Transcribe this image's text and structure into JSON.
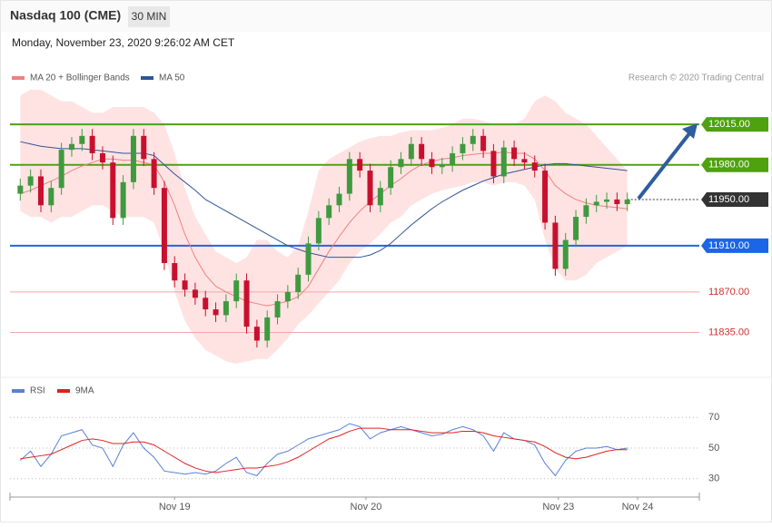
{
  "chart_data": {
    "type": "candlestick",
    "title": "Nasdaq 100 (CME)",
    "timeframe": "30 MIN",
    "subtitle": "Monday, November 23, 2020 9:26:02 AM CET",
    "credit": "Research © 2020 Trading Central",
    "xlim": [
      -1,
      66
    ],
    "xticks": [
      {
        "value": 15,
        "label": "Nov 19"
      },
      {
        "value": 33.6,
        "label": "Nov 20"
      },
      {
        "value": 52.3,
        "label": "Nov 23"
      },
      {
        "value": 60,
        "label": "Nov 24"
      }
    ],
    "ylim": [
      11797,
      12048
    ],
    "up_color": "#3f9a3f",
    "down_color": "#c8102e",
    "open": [
      11955,
      11962,
      11970,
      11945,
      11960,
      11993,
      11998,
      12005,
      11990,
      11982,
      11934,
      11965,
      12005,
      11985,
      11960,
      11895,
      11880,
      11872,
      11865,
      11855,
      11850,
      11862,
      11880,
      11840,
      11828,
      11848,
      11862,
      11870,
      11885,
      11912,
      11934,
      11945,
      11955,
      11985,
      11975,
      11945,
      11960,
      11978,
      11985,
      11998,
      11985,
      11978,
      11980,
      11990,
      11998,
      12005,
      11992,
      11970,
      11995,
      11985,
      11982,
      11975,
      11930,
      11890,
      11915,
      11935,
      11945,
      11948,
      11950,
      11946
    ],
    "high": [
      11968,
      11976,
      11976,
      11966,
      11999,
      12004,
      12011,
      12011,
      11996,
      11988,
      11971,
      12011,
      12011,
      11991,
      11966,
      11901,
      11886,
      11878,
      11871,
      11861,
      11868,
      11886,
      11886,
      11846,
      11854,
      11868,
      11876,
      11891,
      11918,
      11940,
      11951,
      11961,
      11991,
      11991,
      11981,
      11966,
      11984,
      11991,
      12004,
      12004,
      11991,
      11986,
      11996,
      12004,
      12011,
      12011,
      11998,
      12001,
      12001,
      11991,
      11988,
      11981,
      11936,
      11921,
      11941,
      11951,
      11954,
      11956,
      11956,
      11956
    ],
    "low": [
      11949,
      11956,
      11939,
      11939,
      11954,
      11987,
      11992,
      11984,
      11976,
      11928,
      11928,
      11959,
      11979,
      11954,
      11889,
      11874,
      11866,
      11859,
      11849,
      11844,
      11844,
      11856,
      11834,
      11822,
      11822,
      11842,
      11856,
      11864,
      11879,
      11906,
      11928,
      11939,
      11949,
      11969,
      11939,
      11939,
      11954,
      11972,
      11979,
      11979,
      11972,
      11972,
      11974,
      11984,
      11992,
      11986,
      11964,
      11964,
      11979,
      11976,
      11969,
      11924,
      11884,
      11884,
      11909,
      11929,
      11939,
      11942,
      11940,
      11940
    ],
    "close": [
      11962,
      11970,
      11945,
      11960,
      11993,
      11998,
      12005,
      11990,
      11982,
      11934,
      11965,
      12005,
      11985,
      11960,
      11895,
      11880,
      11872,
      11865,
      11855,
      11850,
      11862,
      11880,
      11840,
      11828,
      11848,
      11862,
      11870,
      11885,
      11912,
      11934,
      11945,
      11955,
      11985,
      11975,
      11945,
      11960,
      11978,
      11985,
      11998,
      11985,
      11978,
      11980,
      11990,
      11998,
      12005,
      11992,
      11970,
      11995,
      11985,
      11982,
      11975,
      11930,
      11890,
      11915,
      11935,
      11945,
      11948,
      11950,
      11946,
      11950
    ],
    "bands": {
      "name": "MA 20 + Bollinger Bands",
      "color": "#f08080",
      "fill": "#ffe3e3",
      "ma": [
        11955,
        11958,
        11962,
        11966,
        11970,
        11975,
        11979,
        11982,
        11985,
        11985,
        11984,
        11984,
        11982,
        11980,
        11965,
        11945,
        11920,
        11900,
        11885,
        11875,
        11870,
        11866,
        11862,
        11860,
        11858,
        11860,
        11862,
        11866,
        11875,
        11890,
        11905,
        11918,
        11930,
        11940,
        11948,
        11955,
        11962,
        11968,
        11975,
        11980,
        11983,
        11985,
        11986,
        11988,
        11989,
        11990,
        11990,
        11991,
        11990,
        11990,
        11985,
        11975,
        11962,
        11955,
        11950,
        11947,
        11945,
        11944,
        11943,
        11942
      ],
      "upper": [
        12040,
        12045,
        12045,
        12040,
        12035,
        12035,
        12030,
        12025,
        12025,
        12030,
        12030,
        12030,
        12030,
        12025,
        12015,
        11990,
        11960,
        11935,
        11920,
        11905,
        11900,
        11895,
        11900,
        11915,
        11915,
        11905,
        11900,
        11910,
        11940,
        11975,
        11985,
        11990,
        11995,
        12000,
        12003,
        12005,
        12005,
        12008,
        12010,
        12010,
        12010,
        12012,
        12015,
        12020,
        12020,
        12018,
        12015,
        12015,
        12015,
        12020,
        12035,
        12040,
        12035,
        12025,
        12020,
        12015,
        12005,
        11995,
        11985,
        11975
      ],
      "lower": [
        11940,
        11935,
        11935,
        11930,
        11935,
        11935,
        11940,
        11945,
        11945,
        11940,
        11935,
        11935,
        11935,
        11930,
        11905,
        11870,
        11845,
        11830,
        11820,
        11815,
        11810,
        11808,
        11810,
        11812,
        11812,
        11820,
        11830,
        11842,
        11850,
        11860,
        11870,
        11880,
        11895,
        11905,
        11912,
        11920,
        11930,
        11935,
        11945,
        11950,
        11955,
        11958,
        11960,
        11962,
        11965,
        11965,
        11962,
        11965,
        11965,
        11962,
        11950,
        11915,
        11890,
        11880,
        11880,
        11885,
        11895,
        11900,
        11905,
        11910
      ]
    },
    "ma50": {
      "name": "MA 50",
      "color": "#2f5597",
      "values": [
        12000,
        11998,
        11996,
        11995,
        11994,
        11994,
        11994,
        11993,
        11992,
        11991,
        11990,
        11990,
        11990,
        11988,
        11980,
        11972,
        11965,
        11958,
        11950,
        11945,
        11940,
        11935,
        11930,
        11925,
        11920,
        11915,
        11910,
        11907,
        11904,
        11902,
        11900,
        11900,
        11900,
        11900,
        11902,
        11906,
        11912,
        11920,
        11928,
        11935,
        11942,
        11948,
        11953,
        11958,
        11962,
        11966,
        11969,
        11972,
        11974,
        11976,
        11978,
        11980,
        11981,
        11981,
        11980,
        11979,
        11978,
        11977,
        11976,
        11975
      ]
    },
    "levels": [
      {
        "value": 12015,
        "label": "12015.00",
        "color": "#4ea10f",
        "style": "solid"
      },
      {
        "value": 11980,
        "label": "11980.00",
        "color": "#4ea10f",
        "style": "solid"
      },
      {
        "value": 11950,
        "label": "11950.00",
        "color": "#333333",
        "style": "dashed"
      },
      {
        "value": 11910,
        "label": "11910.00",
        "color": "#1a66e6",
        "style": "solid"
      },
      {
        "value": 11870,
        "label": "11870.00",
        "color": "#f4a6a6",
        "style": "plain"
      },
      {
        "value": 11835,
        "label": "11835.00",
        "color": "#f4a6a6",
        "style": "plain"
      }
    ],
    "rsi": {
      "ylim": [
        18,
        82
      ],
      "yticks": [
        70,
        50,
        30
      ],
      "series": [
        {
          "name": "RSI",
          "color": "#5b7fd6",
          "values": [
            42,
            48,
            38,
            46,
            58,
            60,
            62,
            52,
            50,
            38,
            52,
            60,
            50,
            44,
            35,
            34,
            33,
            34,
            33,
            35,
            40,
            44,
            34,
            32,
            40,
            46,
            48,
            52,
            56,
            58,
            60,
            62,
            66,
            64,
            56,
            60,
            62,
            64,
            62,
            60,
            58,
            59,
            62,
            64,
            62,
            58,
            48,
            60,
            56,
            55,
            52,
            40,
            32,
            42,
            48,
            50,
            50,
            51,
            49,
            50
          ]
        },
        {
          "name": "9MA",
          "color": "#e02020",
          "values": [
            43,
            44,
            45,
            46,
            49,
            52,
            55,
            56,
            55,
            53,
            53,
            54,
            54,
            52,
            48,
            44,
            40,
            37,
            35,
            34,
            35,
            36,
            37,
            37,
            38,
            39,
            41,
            44,
            48,
            52,
            56,
            58,
            61,
            63,
            63,
            63,
            62,
            62,
            62,
            61,
            60,
            60,
            60,
            61,
            61,
            60,
            58,
            57,
            56,
            55,
            54,
            51,
            47,
            44,
            43,
            44,
            46,
            48,
            49,
            49
          ]
        }
      ]
    }
  }
}
